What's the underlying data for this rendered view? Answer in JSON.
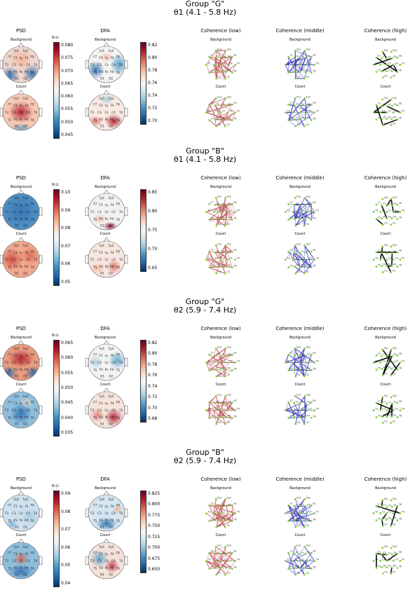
{
  "sections": [
    {
      "group": "Group \"G\"",
      "band": "θ1 (4.1 - 5.8 Hz)",
      "psd_ticks": [
        "0.080",
        "0.075",
        "0.070",
        "0.065",
        "0.060",
        "0.055",
        "0.050",
        "0.045"
      ],
      "dfa_ticks": [
        "0.82",
        "0.80",
        "0.78",
        "0.76",
        "0.74",
        "0.72",
        "0.70"
      ]
    },
    {
      "group": "Group \"B\"",
      "band": "θ1 (4.1 - 5.8 Hz)",
      "psd_ticks": [
        "0.10",
        "0.09",
        "0.08",
        "0.07",
        "0.06",
        "0.05"
      ],
      "dfa_ticks": [
        "0.85",
        "0.80",
        "0.75",
        "0.70",
        "0.65"
      ]
    },
    {
      "group": "Group \"G\"",
      "band": "θ2 (5.9 - 7.4 Hz)",
      "psd_ticks": [
        "0.065",
        "0.060",
        "0.055",
        "0.050",
        "0.045",
        "0.040",
        "0.035"
      ],
      "dfa_ticks": [
        "0.82",
        "0.80",
        "0.78",
        "0.76",
        "0.74",
        "0.72",
        "0.70",
        "0.68"
      ]
    },
    {
      "group": "Group \"B\"",
      "band": "θ2 (5.9 - 7.4 Hz)",
      "psd_ticks": [
        "0.09",
        "0.08",
        "0.07",
        "0.06",
        "0.05",
        "0.04"
      ],
      "dfa_ticks": [
        "0.825",
        "0.800",
        "0.775",
        "0.750",
        "0.725",
        "0.700",
        "0.675",
        "0.650"
      ]
    }
  ],
  "columns": {
    "psd": "PSD",
    "dfa": "DFA",
    "coh_low": "Coherence (low)",
    "coh_mid": "Coherence (middle)",
    "coh_high": "Coherence (high)"
  },
  "rows": {
    "background": "Background",
    "count": "Count"
  },
  "unit": "N.U.",
  "electrodes": [
    "Fp1",
    "Fp2",
    "F7",
    "F3",
    "Fz",
    "F4",
    "F8",
    "T3",
    "C3",
    "Cz",
    "C4",
    "T4",
    "T5",
    "P3",
    "Pz",
    "P4",
    "T6",
    "O1",
    "O2"
  ],
  "colors": {
    "low": "#c0505a",
    "middle": "#2a2ab8",
    "high": "#000000",
    "node": "#7fcf3a"
  }
}
